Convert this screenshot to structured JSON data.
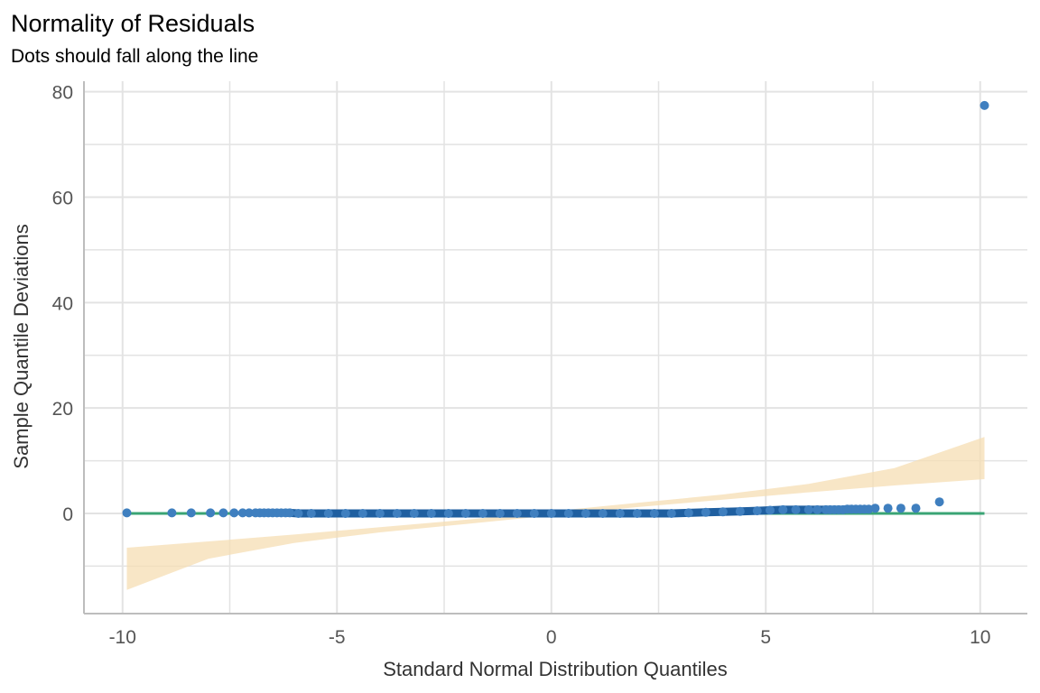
{
  "chart_data": {
    "type": "scatter",
    "title": "Normality of Residuals",
    "subtitle": "Dots should fall along the line",
    "xlabel": "Standard Normal Distribution Quantiles",
    "ylabel": "Sample Quantile Deviations",
    "xlim": [
      -10.9,
      11.1
    ],
    "ylim": [
      -19,
      82
    ],
    "x_ticks": [
      -10,
      -5,
      0,
      5,
      10
    ],
    "x_tick_labels": [
      "-10",
      "-5",
      "0",
      "5",
      "10"
    ],
    "y_ticks": [
      0,
      20,
      40,
      60,
      80
    ],
    "y_tick_labels": [
      "0",
      "20",
      "40",
      "60",
      "80"
    ],
    "grid": true,
    "legend": "none",
    "colors": {
      "points": "#3F7FBF",
      "reference_line": "#3AA474",
      "confidence_band": "#F5DEB3",
      "grid": "#E3E3E3",
      "axis": "#BDBDBD"
    },
    "series": [
      {
        "type": "points",
        "x": [
          -9.9,
          -8.85,
          -8.4,
          -7.95,
          -7.65,
          -7.4,
          -7.2,
          -7.05,
          -6.9,
          -6.8,
          -6.7,
          -6.6,
          -6.5,
          -6.4,
          -6.3,
          -6.2,
          -6.1,
          -5.9,
          -5.6,
          -5.2,
          -4.8,
          -4.4,
          -4.0,
          -3.6,
          -3.2,
          -2.8,
          -2.4,
          -2.0,
          -1.6,
          -1.2,
          -0.8,
          -0.4,
          0.0,
          0.4,
          0.8,
          1.2,
          1.6,
          2.0,
          2.4,
          2.8,
          3.2,
          3.6,
          4.0,
          4.4,
          4.8,
          5.1,
          5.4,
          5.7,
          6.0,
          6.2,
          6.4,
          6.5,
          6.6,
          6.7,
          6.8,
          6.9,
          7.0,
          7.1,
          7.2,
          7.3,
          7.4,
          7.55,
          7.85,
          8.15,
          8.5,
          9.05,
          10.1
        ],
        "y": [
          0.1,
          0.1,
          0.1,
          0.1,
          0.1,
          0.1,
          0.1,
          0.1,
          0.1,
          0.1,
          0.1,
          0.1,
          0.1,
          0.1,
          0.1,
          0.1,
          0.1,
          0.0,
          0.0,
          0.0,
          0.0,
          0.0,
          0.0,
          0.0,
          0.0,
          0.0,
          0.0,
          0.0,
          0.0,
          0.0,
          0.0,
          0.0,
          0.0,
          0.0,
          0.0,
          0.0,
          0.0,
          0.0,
          0.0,
          0.0,
          0.1,
          0.2,
          0.3,
          0.4,
          0.5,
          0.6,
          0.7,
          0.7,
          0.7,
          0.7,
          0.7,
          0.7,
          0.7,
          0.7,
          0.7,
          0.8,
          0.8,
          0.8,
          0.8,
          0.8,
          0.8,
          1.0,
          1.0,
          1.0,
          1.0,
          2.2,
          77.4
        ]
      }
    ],
    "reference_line": {
      "x": [
        -9.9,
        10.1
      ],
      "y": [
        0,
        0
      ]
    },
    "confidence_band": {
      "x": [
        -9.9,
        -8,
        -6,
        -4,
        -2,
        0,
        2,
        4,
        6,
        8,
        10.1
      ],
      "upper": [
        -6.5,
        -5.3,
        -4.0,
        -2.6,
        -1.2,
        0.4,
        2.0,
        3.6,
        5.6,
        8.6,
        14.5
      ],
      "lower": [
        -14.5,
        -8.6,
        -5.6,
        -3.6,
        -2.0,
        -0.4,
        1.2,
        2.6,
        4.0,
        5.3,
        6.5
      ]
    }
  }
}
